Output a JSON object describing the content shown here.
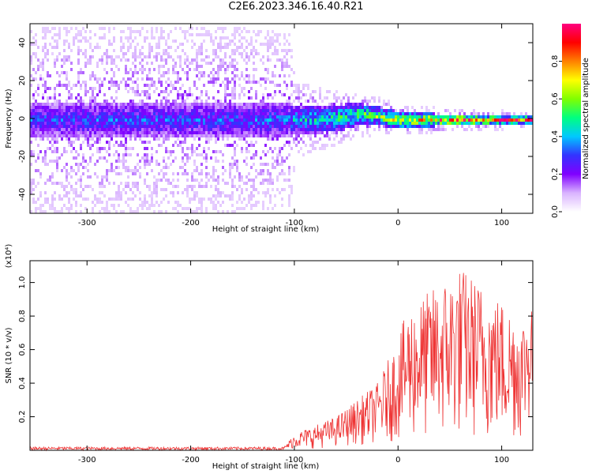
{
  "title": "C2E6.2023.346.16.40.R21",
  "chart_data": [
    {
      "type": "heatmap",
      "xlabel": "Height of straight line (km)",
      "ylabel": "Frequency (Hz)",
      "xlim": [
        -355,
        130
      ],
      "ylim": [
        -50,
        50
      ],
      "x_ticks": [
        -300,
        -200,
        -100,
        0,
        100
      ],
      "y_ticks": [
        -40,
        -20,
        0,
        20,
        40
      ],
      "grid": false,
      "colorbar": {
        "label": "Normalized spectral amplitude",
        "range": [
          0.0,
          1.0
        ],
        "ticks": [
          "0.0",
          "0.2",
          "0.4",
          "0.6",
          "0.8"
        ],
        "colors": [
          "#ffffff",
          "#d9b3ff",
          "#8000ff",
          "#3333ff",
          "#00c8ff",
          "#00ff80",
          "#80ff00",
          "#ffff00",
          "#ff8000",
          "#ff0000",
          "#ff0080"
        ]
      },
      "profile": [
        {
          "x": -350,
          "center": 0,
          "core_width": 10,
          "halo_width": 50,
          "peak": 0.35
        },
        {
          "x": -150,
          "center": 0,
          "core_width": 10,
          "halo_width": 50,
          "peak": 0.35
        },
        {
          "x": -105,
          "center": 0,
          "core_width": 9,
          "halo_width": 45,
          "peak": 0.4
        },
        {
          "x": -100,
          "center": 0,
          "core_width": 8,
          "halo_width": 20,
          "peak": 0.45
        },
        {
          "x": -60,
          "center": 1,
          "core_width": 7,
          "halo_width": 14,
          "peak": 0.55
        },
        {
          "x": -40,
          "center": 3,
          "core_width": 6,
          "halo_width": 12,
          "peak": 0.6
        },
        {
          "x": -20,
          "center": 2,
          "core_width": 5,
          "halo_width": 10,
          "peak": 0.65
        },
        {
          "x": 0,
          "center": 0,
          "core_width": 4,
          "halo_width": 8,
          "peak": 0.8
        },
        {
          "x": 50,
          "center": 0,
          "core_width": 3,
          "halo_width": 6,
          "peak": 0.9
        },
        {
          "x": 100,
          "center": 0,
          "core_width": 2,
          "halo_width": 5,
          "peak": 1.0
        },
        {
          "x": 130,
          "center": 0,
          "core_width": 2,
          "halo_width": 4,
          "peak": 1.0
        }
      ]
    },
    {
      "type": "line",
      "xlabel": "Height of straight line (km)",
      "ylabel": "SNR (10 * v/v)",
      "y_multiplier": "(x10⁴)",
      "xlim": [
        -355,
        130
      ],
      "ylim": [
        0,
        1.13
      ],
      "x_ticks": [
        -300,
        -200,
        -100,
        0,
        100
      ],
      "y_ticks": [
        0.2,
        0.4,
        0.6,
        0.8,
        1.0
      ],
      "line_color": "#ee3333",
      "envelope": [
        {
          "x": -355,
          "low": 0.0,
          "high": 0.02
        },
        {
          "x": -110,
          "low": 0.0,
          "high": 0.02
        },
        {
          "x": -100,
          "low": 0.01,
          "high": 0.1
        },
        {
          "x": -80,
          "low": 0.01,
          "high": 0.15
        },
        {
          "x": -60,
          "low": 0.02,
          "high": 0.2
        },
        {
          "x": -40,
          "low": 0.03,
          "high": 0.3
        },
        {
          "x": -20,
          "low": 0.04,
          "high": 0.4
        },
        {
          "x": -5,
          "low": 0.05,
          "high": 0.6
        },
        {
          "x": 10,
          "low": 0.05,
          "high": 0.85
        },
        {
          "x": 30,
          "low": 0.05,
          "high": 0.95
        },
        {
          "x": 60,
          "low": 0.05,
          "high": 1.1
        },
        {
          "x": 80,
          "low": 0.05,
          "high": 1.0
        },
        {
          "x": 100,
          "low": 0.05,
          "high": 0.9
        },
        {
          "x": 120,
          "low": 0.05,
          "high": 0.8
        },
        {
          "x": 130,
          "low": 0.2,
          "high": 0.95
        }
      ]
    }
  ]
}
